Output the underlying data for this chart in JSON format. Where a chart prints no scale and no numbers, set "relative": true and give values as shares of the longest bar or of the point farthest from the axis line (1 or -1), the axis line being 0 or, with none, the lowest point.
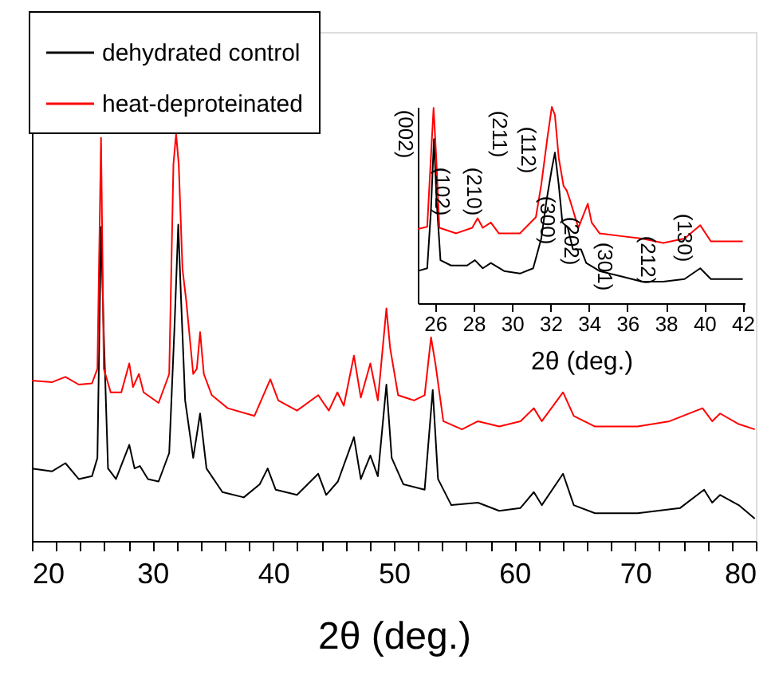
{
  "chart_data": [
    {
      "type": "line",
      "relative": true,
      "xlabel": "2θ (deg.)",
      "legend": "top left",
      "xlim": [
        20,
        80
      ],
      "xticks": [
        20,
        {
          "value": 22,
          "label": null
        },
        {
          "value": 24,
          "label": null
        },
        {
          "value": 26,
          "label": null
        },
        {
          "value": 28,
          "label": null
        },
        30,
        {
          "value": 32,
          "label": null
        },
        {
          "value": 34,
          "label": null
        },
        {
          "value": 36,
          "label": null
        },
        {
          "value": 38,
          "label": null
        },
        40,
        {
          "value": 42,
          "label": null
        },
        {
          "value": 44,
          "label": null
        },
        {
          "value": 46,
          "label": null
        },
        {
          "value": 48,
          "label": null
        },
        50,
        {
          "value": 52,
          "label": null
        },
        {
          "value": 54,
          "label": null
        },
        {
          "value": 56,
          "label": null
        },
        {
          "value": 58,
          "label": null
        },
        60,
        {
          "value": 62,
          "label": null
        },
        {
          "value": 64,
          "label": null
        },
        {
          "value": 66,
          "label": null
        },
        {
          "value": 68,
          "label": null
        },
        70,
        {
          "value": 72,
          "label": null
        },
        {
          "value": 74,
          "label": null
        },
        {
          "value": 76,
          "label": null
        },
        {
          "value": 78,
          "label": null
        },
        80
      ],
      "series": [
        {
          "name": "dehydrated control",
          "color": "#000000",
          "x": [
            20.0,
            21.68,
            22.78,
            23.88,
            24.98,
            25.43,
            25.73,
            25.96,
            26.31,
            26.97,
            28.07,
            28.51,
            28.95,
            29.62,
            30.5,
            31.38,
            31.82,
            32.13,
            32.35,
            32.7,
            33.37,
            33.94,
            34.47,
            35.79,
            37.56,
            38.88,
            39.54,
            40.2,
            41.97,
            43.73,
            44.39,
            45.36,
            46.69,
            47.26,
            48.05,
            48.67,
            49.38,
            49.82,
            50.79,
            52.55,
            53.22,
            53.66,
            54.76,
            56.97,
            58.73,
            60.49,
            61.6,
            62.26,
            64.02,
            64.91,
            66.67,
            70.2,
            73.73,
            75.71,
            76.38,
            77.04,
            78.58,
            79.91
          ],
          "values": [
            0.178,
            0.171,
            0.191,
            0.152,
            0.159,
            0.204,
            0.771,
            0.506,
            0.178,
            0.152,
            0.236,
            0.178,
            0.184,
            0.152,
            0.146,
            0.216,
            0.526,
            0.777,
            0.603,
            0.345,
            0.204,
            0.313,
            0.178,
            0.12,
            0.107,
            0.139,
            0.178,
            0.126,
            0.113,
            0.165,
            0.113,
            0.146,
            0.255,
            0.152,
            0.21,
            0.159,
            0.384,
            0.204,
            0.139,
            0.126,
            0.371,
            0.152,
            0.088,
            0.094,
            0.074,
            0.081,
            0.12,
            0.088,
            0.165,
            0.088,
            0.068,
            0.068,
            0.081,
            0.126,
            0.094,
            0.113,
            0.088,
            0.055
          ]
        },
        {
          "name": "heat-deproteinated",
          "color": "#ff0000",
          "x": [
            20.0,
            21.68,
            22.78,
            23.88,
            24.98,
            25.43,
            25.73,
            25.96,
            26.53,
            27.41,
            28.07,
            28.38,
            28.87,
            29.26,
            30.5,
            31.38,
            31.73,
            31.95,
            32.17,
            32.48,
            32.79,
            33.37,
            33.67,
            33.94,
            34.25,
            34.91,
            36.23,
            38.44,
            39.76,
            40.42,
            41.97,
            43.73,
            44.61,
            45.32,
            45.85,
            46.69,
            47.26,
            48.05,
            48.67,
            49.38,
            49.69,
            50.35,
            51.67,
            52.55,
            53.08,
            53.44,
            54.1,
            55.64,
            56.97,
            58.73,
            60.49,
            61.6,
            62.26,
            64.02,
            64.91,
            66.67,
            70.2,
            72.85,
            75.58,
            76.38,
            77.04,
            78.58,
            79.91
          ],
          "values": [
            0.394,
            0.39,
            0.403,
            0.384,
            0.387,
            0.423,
            0.99,
            0.423,
            0.365,
            0.365,
            0.436,
            0.378,
            0.41,
            0.365,
            0.339,
            0.41,
            0.925,
            1.0,
            0.925,
            0.668,
            0.59,
            0.41,
            0.423,
            0.513,
            0.41,
            0.358,
            0.326,
            0.307,
            0.397,
            0.345,
            0.32,
            0.358,
            0.32,
            0.365,
            0.332,
            0.455,
            0.352,
            0.436,
            0.345,
            0.571,
            0.474,
            0.358,
            0.345,
            0.358,
            0.5,
            0.436,
            0.294,
            0.274,
            0.294,
            0.281,
            0.294,
            0.326,
            0.294,
            0.365,
            0.307,
            0.281,
            0.281,
            0.294,
            0.326,
            0.294,
            0.313,
            0.287,
            0.274
          ]
        }
      ]
    },
    {
      "type": "line",
      "relative": true,
      "xlabel": "2θ (deg.)",
      "xlim": [
        25.1,
        42.1
      ],
      "xticks": [
        26,
        28,
        30,
        32,
        34,
        36,
        38,
        40,
        42
      ],
      "series": [
        {
          "color": "#000000",
          "x": [
            25.1,
            25.59,
            25.78,
            25.94,
            26.08,
            26.28,
            26.83,
            27.66,
            28.07,
            28.48,
            28.9,
            29.59,
            30.41,
            31.1,
            31.52,
            31.79,
            32.07,
            32.23,
            32.43,
            32.62,
            32.9,
            33.17,
            33.59,
            33.86,
            34.55,
            35.66,
            36.76,
            37.86,
            38.97,
            39.79,
            40.34,
            42.0
          ],
          "values": [
            0.164,
            0.178,
            0.466,
            0.836,
            0.521,
            0.219,
            0.192,
            0.192,
            0.219,
            0.178,
            0.205,
            0.164,
            0.151,
            0.178,
            0.329,
            0.521,
            0.685,
            0.767,
            0.603,
            0.411,
            0.384,
            0.274,
            0.274,
            0.205,
            0.164,
            0.137,
            0.11,
            0.11,
            0.123,
            0.178,
            0.123,
            0.123
          ]
        },
        {
          "color": "#ff0000",
          "x": [
            25.1,
            25.59,
            25.78,
            25.92,
            26.06,
            26.22,
            27.1,
            27.93,
            28.21,
            28.48,
            28.9,
            29.31,
            30.41,
            31.24,
            31.52,
            31.85,
            32.07,
            32.23,
            32.43,
            32.68,
            32.84,
            33.03,
            33.45,
            33.94,
            34.14,
            34.55,
            35.66,
            36.76,
            37.86,
            38.97,
            39.79,
            40.34,
            42.0
          ],
          "values": [
            0.378,
            0.389,
            0.74,
            0.995,
            0.74,
            0.384,
            0.356,
            0.384,
            0.433,
            0.384,
            0.411,
            0.356,
            0.356,
            0.438,
            0.603,
            0.85,
            1.0,
            0.959,
            0.74,
            0.597,
            0.575,
            0.52,
            0.384,
            0.507,
            0.411,
            0.356,
            0.342,
            0.329,
            0.307,
            0.329,
            0.397,
            0.315,
            0.315
          ]
        }
      ],
      "annotations": [
        "(002)",
        "(102)",
        "(210)",
        "(211)",
        "(112)",
        "(300)",
        "(202)",
        "(301)",
        "(212)",
        "(130)"
      ]
    }
  ]
}
